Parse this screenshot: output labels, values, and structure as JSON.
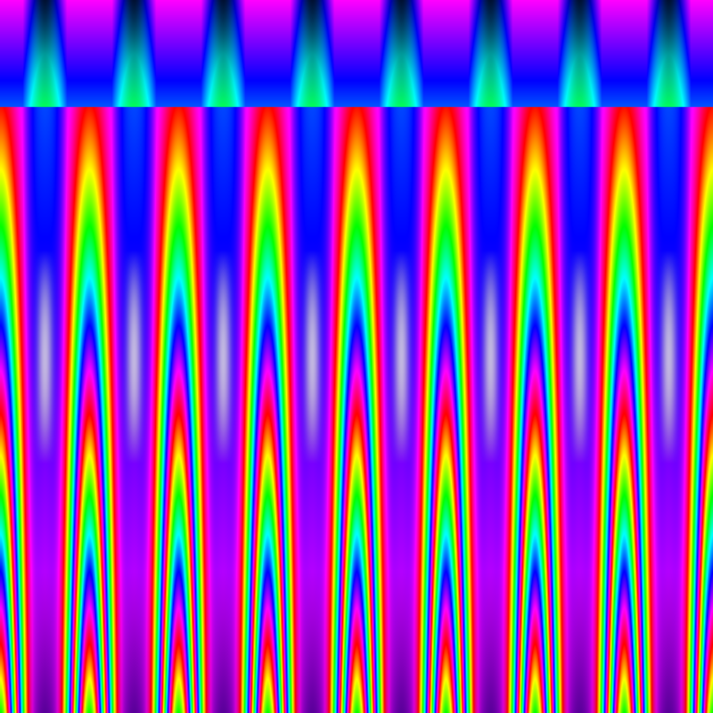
{
  "pattern": {
    "repeat_count": 8,
    "top_color": "#ff00ff",
    "column_core_top_color": "#001a80",
    "bottom_core_color": "#5a0090",
    "palette": [
      "#ff00ff",
      "#0060ff",
      "#00d0e0",
      "#00a060",
      "#ff0030",
      "#a0c000",
      "#5a0090"
    ]
  }
}
